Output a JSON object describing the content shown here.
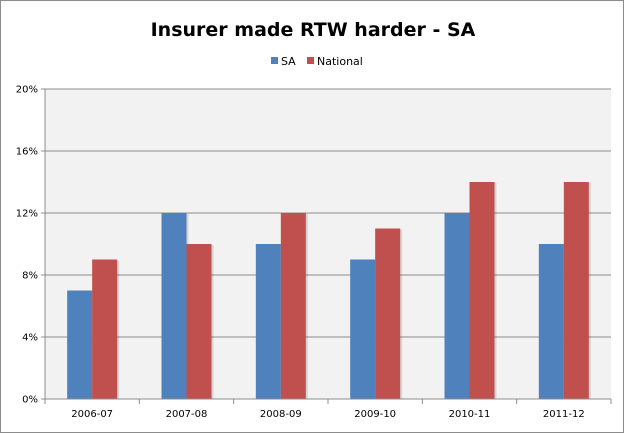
{
  "chart_data": {
    "type": "bar",
    "title": "Insurer made RTW harder - SA",
    "categories": [
      "2006-07",
      "2007-08",
      "2008-09",
      "2009-10",
      "2010-11",
      "2011-12"
    ],
    "series": [
      {
        "name": "SA",
        "color": "#4f81bd",
        "values": [
          7,
          12,
          10,
          9,
          12,
          10
        ]
      },
      {
        "name": "National",
        "color": "#c0504d",
        "values": [
          9,
          10,
          12,
          11,
          14,
          14
        ]
      }
    ],
    "xlabel": "",
    "ylabel": "",
    "ylim": [
      0,
      20
    ],
    "yticks": [
      0,
      4,
      8,
      12,
      16,
      20
    ],
    "ytick_labels": [
      "0%",
      "4%",
      "8%",
      "12%",
      "16%",
      "20%"
    ],
    "grid": true,
    "legend_position": "top",
    "plot_background": "#f2f2f2"
  }
}
